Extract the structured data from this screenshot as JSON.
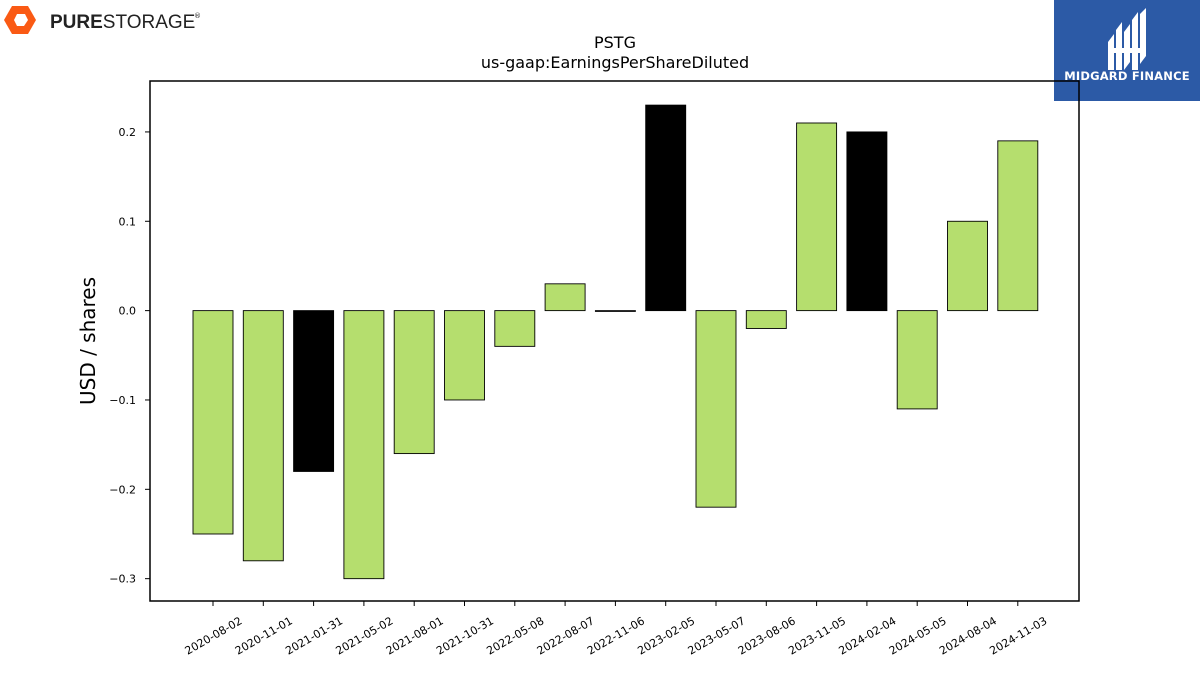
{
  "logos": {
    "left": {
      "name": "PURE STORAGE",
      "prefix": "PURE",
      "suffix": "STORAGE",
      "mark": "®",
      "color": "#fa5a14"
    },
    "right": {
      "name": "MIDGARD FINANCE",
      "color": "#2c5aa6"
    }
  },
  "chart_data": {
    "type": "bar",
    "title": "PSTG",
    "subtitle": "us-gaap:EarningsPerShareDiluted",
    "xlabel": "",
    "ylabel": "USD / shares",
    "ylim": [
      -0.325,
      0.257
    ],
    "yticks": [
      -0.3,
      -0.2,
      -0.1,
      0.0,
      0.1,
      0.2
    ],
    "ytick_labels": [
      "−0.3",
      "−0.2",
      "−0.1",
      "0.0",
      "0.1",
      "0.2"
    ],
    "grid": false,
    "categories": [
      "2020-08-02",
      "2020-11-01",
      "2021-01-31",
      "2021-05-02",
      "2021-08-01",
      "2021-10-31",
      "2022-05-08",
      "2022-08-07",
      "2022-11-06",
      "2023-02-05",
      "2023-05-07",
      "2023-08-06",
      "2023-11-05",
      "2024-02-04",
      "2024-05-05",
      "2024-08-04",
      "2024-11-03"
    ],
    "values": [
      -0.25,
      -0.28,
      -0.18,
      -0.3,
      -0.16,
      -0.1,
      -0.04,
      0.03,
      0.0,
      0.23,
      -0.22,
      -0.02,
      0.21,
      0.2,
      -0.11,
      0.1,
      0.19
    ],
    "colors": [
      "#b5de6e",
      "#b5de6e",
      "#000000",
      "#b5de6e",
      "#b5de6e",
      "#b5de6e",
      "#b5de6e",
      "#b5de6e",
      "#b5de6e",
      "#000000",
      "#b5de6e",
      "#b5de6e",
      "#b5de6e",
      "#000000",
      "#b5de6e",
      "#b5de6e",
      "#b5de6e"
    ]
  }
}
